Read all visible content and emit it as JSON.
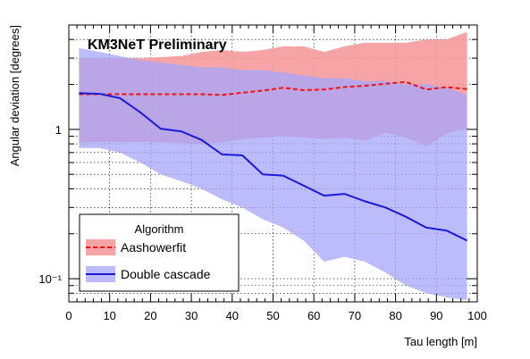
{
  "chart_data": {
    "type": "area",
    "annotation": "KM3NeT Preliminary",
    "xlabel": "Tau length [m]",
    "ylabel": "Angular deviation [degrees]",
    "xlim": [
      0,
      100
    ],
    "ylim": [
      0.07,
      5
    ],
    "y_scale": "log",
    "grid": true,
    "x_ticks": [
      0,
      10,
      20,
      30,
      40,
      50,
      60,
      70,
      80,
      90,
      100
    ],
    "x_tick_labels": [
      "0",
      "10",
      "20",
      "30",
      "40",
      "50",
      "60",
      "70",
      "80",
      "90",
      "100"
    ],
    "y_ticks": [
      0.1,
      1
    ],
    "y_tick_labels": [
      "10⁻¹",
      "1"
    ],
    "legend": {
      "title": "Algorithm",
      "placement": "bottom-left"
    },
    "series": [
      {
        "name": "Aashowerfit",
        "line_color": "#e8141a",
        "line_style": "dashed",
        "band_color": "#f59a9c",
        "x": [
          2.5,
          7.5,
          12.5,
          17.5,
          22.5,
          27.5,
          32.5,
          37.5,
          42.5,
          47.5,
          52.5,
          57.5,
          62.5,
          67.5,
          72.5,
          77.5,
          82.5,
          87.5,
          92.5,
          97.5
        ],
        "y": [
          1.72,
          1.72,
          1.72,
          1.72,
          1.72,
          1.72,
          1.72,
          1.7,
          1.76,
          1.82,
          1.9,
          1.83,
          1.85,
          1.92,
          1.96,
          2.02,
          2.08,
          1.85,
          1.92,
          1.86
        ],
        "upper": [
          3.0,
          3.0,
          3.0,
          3.0,
          3.05,
          3.1,
          3.3,
          3.4,
          3.3,
          3.4,
          3.6,
          3.6,
          3.3,
          3.6,
          3.8,
          3.8,
          3.8,
          4.0,
          4.0,
          4.5
        ],
        "lower": [
          0.82,
          0.82,
          0.82,
          0.82,
          0.82,
          0.81,
          0.8,
          0.82,
          0.86,
          0.88,
          0.9,
          0.88,
          0.86,
          0.88,
          0.84,
          0.95,
          0.88,
          0.77,
          0.94,
          1.02
        ]
      },
      {
        "name": "Double cascade",
        "line_color": "#1a1adc",
        "line_style": "solid",
        "band_color": "#a6a6fb",
        "x": [
          2.5,
          7.5,
          12.5,
          17.5,
          22.5,
          27.5,
          32.5,
          37.5,
          42.5,
          47.5,
          52.5,
          57.5,
          62.5,
          67.5,
          72.5,
          77.5,
          82.5,
          87.5,
          92.5,
          97.5
        ],
        "y": [
          1.75,
          1.73,
          1.62,
          1.3,
          1.01,
          0.97,
          0.85,
          0.68,
          0.67,
          0.5,
          0.49,
          0.42,
          0.36,
          0.37,
          0.33,
          0.3,
          0.26,
          0.22,
          0.21,
          0.18
        ],
        "upper": [
          3.5,
          3.3,
          3.1,
          2.9,
          2.8,
          2.7,
          2.6,
          2.6,
          2.5,
          2.5,
          2.4,
          2.3,
          2.2,
          2.2,
          2.1,
          2.1,
          2.0,
          2.0,
          1.9,
          1.7
        ],
        "lower": [
          0.75,
          0.75,
          0.7,
          0.6,
          0.5,
          0.45,
          0.4,
          0.34,
          0.3,
          0.25,
          0.22,
          0.18,
          0.13,
          0.14,
          0.13,
          0.11,
          0.09,
          0.08,
          0.075,
          0.072
        ]
      }
    ]
  }
}
